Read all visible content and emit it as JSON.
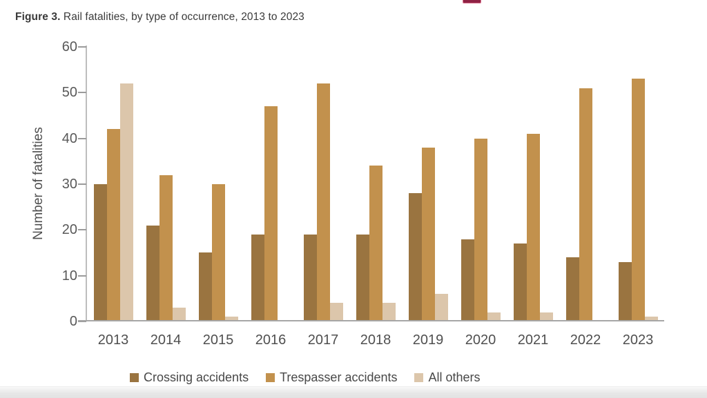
{
  "header": {
    "title_prefix": "Figure 3.",
    "title_rest": " Rail fatalities, by type of occurrence, 2013 to 2023"
  },
  "chart_data": {
    "type": "bar",
    "title": "Figure 3. Rail fatalities, by type of occurrence, 2013 to 2023",
    "categories": [
      "2013",
      "2014",
      "2015",
      "2016",
      "2017",
      "2018",
      "2019",
      "2020",
      "2021",
      "2022",
      "2023"
    ],
    "series": [
      {
        "name": "Crossing accidents",
        "color": "#9a7440",
        "values": [
          30,
          21,
          15,
          19,
          19,
          19,
          28,
          18,
          17,
          14,
          13
        ]
      },
      {
        "name": "Trespasser accidents",
        "color": "#c2914d",
        "values": [
          42,
          32,
          30,
          47,
          52,
          34,
          38,
          40,
          41,
          51,
          53
        ]
      },
      {
        "name": "All others",
        "color": "#dcc6ab",
        "values": [
          52,
          3,
          1,
          0,
          4,
          4,
          6,
          2,
          2,
          0,
          1
        ]
      }
    ],
    "xlabel": "",
    "ylabel": "Number of fatalities",
    "ylim": [
      0,
      60
    ],
    "yticks": [
      0,
      10,
      20,
      30,
      40,
      50,
      60
    ],
    "grid": false,
    "legend_position": "bottom"
  },
  "decorations": {
    "clipped_red_element_color": "#8f2244",
    "axis_line_color": "#bdbdbd",
    "baseline_color": "#a6a6a6",
    "tick_text_color": "#595959"
  }
}
